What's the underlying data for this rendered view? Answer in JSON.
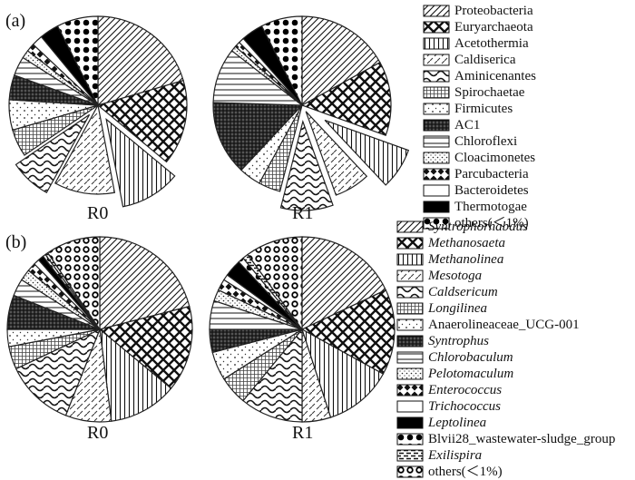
{
  "chart_data": [
    {
      "type": "pie",
      "panel": "(a)",
      "legend": [
        {
          "name": "Proteobacteria",
          "pattern": "diag"
        },
        {
          "name": "Euryarchaeota",
          "pattern": "xhatch"
        },
        {
          "name": "Acetothermia",
          "pattern": "vlines"
        },
        {
          "name": "Caldiserica",
          "pattern": "dashdiag"
        },
        {
          "name": "Aminicenantes",
          "pattern": "wave"
        },
        {
          "name": "Spirochaetae",
          "pattern": "grid"
        },
        {
          "name": "Firmicutes",
          "pattern": "plusdots"
        },
        {
          "name": "AC1",
          "pattern": "dense"
        },
        {
          "name": "Chloroflexi",
          "pattern": "hlines"
        },
        {
          "name": "Cloacimonetes",
          "pattern": "sdots"
        },
        {
          "name": "Parcubacteria",
          "pattern": "diamond"
        },
        {
          "name": "Bacteroidetes",
          "pattern": "empty"
        },
        {
          "name": "Thermotogae",
          "pattern": "black"
        },
        {
          "name": "others(＜1%)",
          "pattern": "bigdots"
        }
      ],
      "pies": [
        {
          "label": "R0",
          "slices": [
            {
              "name": "Proteobacteria",
              "value": 20.5
            },
            {
              "name": "Euryarchaeota",
              "value": 15.5
            },
            {
              "name": "Acetothermia",
              "value": 11.0
            },
            {
              "name": "Caldiserica",
              "value": 11.0
            },
            {
              "name": "Aminicenantes",
              "value": 7.5
            },
            {
              "name": "Spirochaetae",
              "value": 5.0
            },
            {
              "name": "Firmicutes",
              "value": 5.5
            },
            {
              "name": "AC1",
              "value": 4.5
            },
            {
              "name": "Chloroflexi",
              "value": 3.5
            },
            {
              "name": "Cloacimonetes",
              "value": 1.5
            },
            {
              "name": "Parcubacteria",
              "value": 1.5
            },
            {
              "name": "Bacteroidetes",
              "value": 2.0
            },
            {
              "name": "Thermotogae",
              "value": 3.5
            },
            {
              "name": "others(＜1%)",
              "value": 7.5
            }
          ]
        },
        {
          "label": "R1",
          "slices": [
            {
              "name": "Proteobacteria",
              "value": 17.0
            },
            {
              "name": "Euryarchaeota",
              "value": 13.5
            },
            {
              "name": "Acetothermia",
              "value": 7.5
            },
            {
              "name": "Caldiserica",
              "value": 6.5
            },
            {
              "name": "Aminicenantes",
              "value": 9.5
            },
            {
              "name": "Spirochaetae",
              "value": 4.0
            },
            {
              "name": "Firmicutes",
              "value": 4.0
            },
            {
              "name": "AC1",
              "value": 13.5
            },
            {
              "name": "Chloroflexi",
              "value": 10.0
            },
            {
              "name": "Cloacimonetes",
              "value": 1.0
            },
            {
              "name": "Parcubacteria",
              "value": 1.0
            },
            {
              "name": "Bacteroidetes",
              "value": 1.0
            },
            {
              "name": "Thermotogae",
              "value": 4.0
            },
            {
              "name": "others(＜1%)",
              "value": 7.5
            }
          ]
        }
      ]
    },
    {
      "type": "pie",
      "panel": "(b)",
      "legend": [
        {
          "name": "Syntrophorhabdus",
          "pattern": "diag"
        },
        {
          "name": "Methanosaeta",
          "pattern": "xhatch"
        },
        {
          "name": "Methanolinea",
          "pattern": "vlines"
        },
        {
          "name": "Mesotoga",
          "pattern": "dashdiag"
        },
        {
          "name": "Caldsericum",
          "pattern": "wave"
        },
        {
          "name": "Longilinea",
          "pattern": "grid"
        },
        {
          "name": "Anaerolineaceae_UCG-001",
          "pattern": "plusdots"
        },
        {
          "name": "Syntrophus",
          "pattern": "dense"
        },
        {
          "name": "Chlorobaculum",
          "pattern": "hlines"
        },
        {
          "name": "Pelotomaculum",
          "pattern": "sdots"
        },
        {
          "name": "Enterococcus",
          "pattern": "diamond"
        },
        {
          "name": "Trichococcus",
          "pattern": "empty"
        },
        {
          "name": "Leptolinea",
          "pattern": "black"
        },
        {
          "name": "Blvii28_wastewater-sludge_group",
          "pattern": "bigdots"
        },
        {
          "name": "Exilispira",
          "pattern": "bars"
        },
        {
          "name": "others(＜1%)",
          "pattern": "rings"
        }
      ],
      "pies": [
        {
          "label": "R0",
          "slices": [
            {
              "name": "Syntrophorhabdus",
              "value": 21.0
            },
            {
              "name": "Methanosaeta",
              "value": 15.0
            },
            {
              "name": "Methanolinea",
              "value": 12.0
            },
            {
              "name": "Mesotoga",
              "value": 8.0
            },
            {
              "name": "Caldsericum",
              "value": 12.0
            },
            {
              "name": "Longilinea",
              "value": 4.0
            },
            {
              "name": "Anaerolineaceae_UCG-001",
              "value": 3.0
            },
            {
              "name": "Syntrophus",
              "value": 6.0
            },
            {
              "name": "Chlorobaculum",
              "value": 3.0
            },
            {
              "name": "Pelotomaculum",
              "value": 2.0
            },
            {
              "name": "Enterococcus",
              "value": 1.5
            },
            {
              "name": "Trichococcus",
              "value": 1.0
            },
            {
              "name": "Leptolinea",
              "value": 1.0
            },
            {
              "name": "Blvii28_wastewater-sludge_group",
              "value": 0.5
            },
            {
              "name": "Exilispira",
              "value": 0.5
            },
            {
              "name": "others(＜1%)",
              "value": 9.5
            }
          ]
        },
        {
          "label": "R1",
          "slices": [
            {
              "name": "Syntrophorhabdus",
              "value": 18.0
            },
            {
              "name": "Methanosaeta",
              "value": 15.0
            },
            {
              "name": "Methanolinea",
              "value": 12.0
            },
            {
              "name": "Mesotoga",
              "value": 5.0
            },
            {
              "name": "Caldsericum",
              "value": 11.0
            },
            {
              "name": "Longilinea",
              "value": 5.0
            },
            {
              "name": "Anaerolineaceae_UCG-001",
              "value": 5.0
            },
            {
              "name": "Syntrophus",
              "value": 4.0
            },
            {
              "name": "Chlorobaculum",
              "value": 5.0
            },
            {
              "name": "Pelotomaculum",
              "value": 2.0
            },
            {
              "name": "Enterococcus",
              "value": 2.0
            },
            {
              "name": "Trichococcus",
              "value": 1.0
            },
            {
              "name": "Leptolinea",
              "value": 3.0
            },
            {
              "name": "Blvii28_wastewater-sludge_group",
              "value": 1.0
            },
            {
              "name": "Exilispira",
              "value": 1.0
            },
            {
              "name": "others(＜1%)",
              "value": 10.0
            }
          ]
        }
      ]
    }
  ]
}
